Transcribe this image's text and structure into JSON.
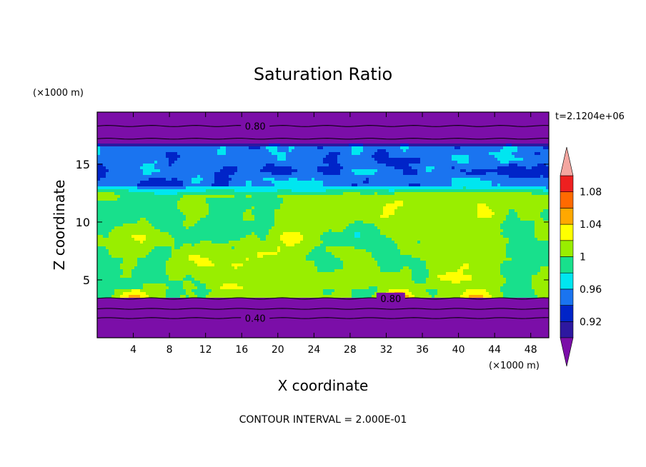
{
  "chart_data": {
    "type": "heatmap",
    "title": "Saturation Ratio",
    "xlabel": "X coordinate",
    "ylabel": "Z coordinate",
    "x_unit": "(×1000 m)",
    "y_unit": "(×1000 m)",
    "time_label": "t=2.1204e+06",
    "footer": "CONTOUR INTERVAL = 2.000E-01",
    "xlim": [
      0,
      50
    ],
    "ylim": [
      0,
      19.5
    ],
    "x_ticks": [
      "4",
      "8",
      "12",
      "16",
      "20",
      "24",
      "28",
      "32",
      "36",
      "40",
      "44",
      "48"
    ],
    "y_ticks": [
      "5",
      "10",
      "15"
    ],
    "contour_labels": [
      "0.80",
      "0.80",
      "0.40"
    ],
    "colorbar": {
      "tick_labels": [
        "0.92",
        "0.96",
        "1",
        "1.04",
        "1.08"
      ],
      "levels": [
        0.9,
        0.92,
        0.94,
        0.96,
        0.98,
        1.0,
        1.02,
        1.04,
        1.06,
        1.08,
        1.1
      ],
      "colors": [
        "#7b0ea8",
        "#2d18a0",
        "#0024c8",
        "#1a74f0",
        "#00e6f0",
        "#18e08c",
        "#99ee00",
        "#ffff00",
        "#ffa800",
        "#ff6a00",
        "#ee2020",
        "#f4a6a0"
      ]
    },
    "bands": [
      {
        "z": [
          0.0,
          3.4
        ],
        "value": "below 0.90"
      },
      {
        "z": [
          3.4,
          4.2
        ],
        "value": "0.98-1.02 with peaks to 1.06 near x=4, 33, 42"
      },
      {
        "z": [
          4.2,
          12.5
        ],
        "value": "0.98-1.02"
      },
      {
        "z": [
          12.5,
          17.0
        ],
        "value": "0.90-0.98"
      },
      {
        "z": [
          17.0,
          19.5
        ],
        "value": "below 0.90"
      }
    ]
  }
}
